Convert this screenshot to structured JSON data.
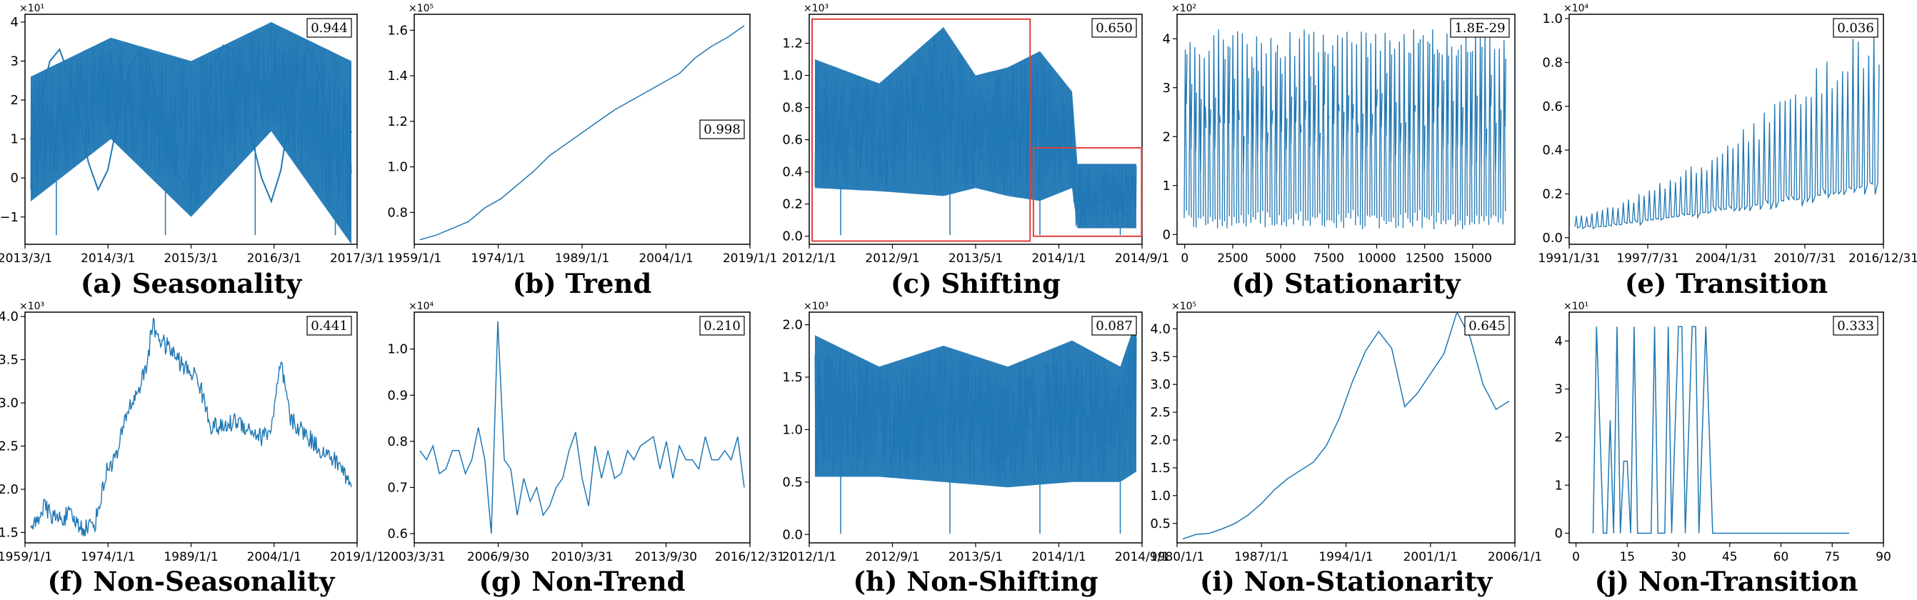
{
  "figure": {
    "accent": "#1f77b4",
    "highlight": "#e0403a"
  },
  "chart_data": [
    {
      "id": "a",
      "type": "line",
      "caption": "(a) Seasonality",
      "badge": "0.944",
      "multiplier": "×10¹",
      "mode": "dense",
      "xlabels": [
        "2013/3/1",
        "2014/3/1",
        "2015/3/1",
        "2016/3/1",
        "2017/3/1"
      ],
      "ylim": [
        -1.7,
        4.2
      ],
      "yticks": [
        -1,
        0,
        1,
        2,
        3,
        4
      ],
      "yticklabels": [
        "−1",
        "0",
        "1",
        "2",
        "3",
        "4"
      ],
      "env_x": [
        0,
        0.25,
        0.5,
        0.75,
        1
      ],
      "env_hi": [
        2.6,
        3.6,
        3.0,
        4.0,
        3.0
      ],
      "env_lo": [
        -0.6,
        1.0,
        -1.0,
        1.2,
        -1.7
      ],
      "series": [
        {
          "name": "",
          "x": [
            0.0,
            0.03,
            0.06,
            0.09,
            0.12,
            0.15,
            0.18,
            0.21,
            0.24,
            0.27,
            0.3,
            0.33,
            0.36,
            0.39,
            0.42,
            0.45,
            0.48,
            0.51,
            0.54,
            0.57,
            0.6,
            0.63,
            0.66,
            0.69,
            0.72,
            0.75,
            0.78,
            0.81,
            0.84,
            0.87,
            0.9,
            0.93,
            0.96,
            1.0
          ],
          "y": [
            1.0,
            2.0,
            3.0,
            3.3,
            2.6,
            1.6,
            0.4,
            -0.3,
            0.2,
            1.4,
            2.6,
            3.2,
            3.1,
            2.2,
            1.1,
            0.2,
            -0.2,
            0.5,
            1.8,
            2.9,
            3.4,
            3.3,
            2.4,
            1.0,
            0.0,
            -0.6,
            0.2,
            1.8,
            3.0,
            3.3,
            2.6,
            1.4,
            0.3,
            1.2
          ]
        }
      ]
    },
    {
      "id": "b",
      "type": "line",
      "caption": "(b) Trend",
      "badge": "0.998",
      "multiplier": "×10⁵",
      "mode": "thin",
      "badge_pos": "right-middle",
      "xlabels": [
        "1959/1/1",
        "1974/1/1",
        "1989/1/1",
        "2004/1/1",
        "2019/1/1"
      ],
      "ylim": [
        0.66,
        1.67
      ],
      "yticks": [
        0.8,
        1.0,
        1.2,
        1.4,
        1.6
      ],
      "yticklabels": [
        "0.8",
        "1.0",
        "1.2",
        "1.4",
        "1.6"
      ],
      "series": [
        {
          "name": "",
          "x": [
            0.0,
            0.05,
            0.1,
            0.15,
            0.2,
            0.25,
            0.3,
            0.35,
            0.4,
            0.45,
            0.5,
            0.55,
            0.6,
            0.65,
            0.7,
            0.75,
            0.8,
            0.85,
            0.9,
            0.95,
            1.0
          ],
          "y": [
            0.68,
            0.7,
            0.73,
            0.76,
            0.82,
            0.86,
            0.92,
            0.98,
            1.05,
            1.1,
            1.15,
            1.2,
            1.25,
            1.29,
            1.33,
            1.37,
            1.41,
            1.48,
            1.53,
            1.57,
            1.62
          ]
        }
      ]
    },
    {
      "id": "c",
      "type": "line",
      "caption": "(c) Shifting",
      "badge": "0.650",
      "multiplier": "×10³",
      "mode": "dense",
      "highlight": true,
      "xlabels": [
        "2012/1/1",
        "2012/9/1",
        "2013/5/1",
        "2014/1/1",
        "2014/9/1"
      ],
      "ylim": [
        -0.05,
        1.38
      ],
      "yticks": [
        0,
        0.2,
        0.4,
        0.6,
        0.8,
        1.0,
        1.2
      ],
      "yticklabels": [
        "0.0",
        "0.2",
        "0.4",
        "0.6",
        "0.8",
        "1.0",
        "1.2"
      ],
      "env_x": [
        0,
        0.2,
        0.4,
        0.5,
        0.6,
        0.7,
        0.8,
        0.81,
        1
      ],
      "env_hi": [
        1.1,
        0.95,
        1.3,
        1.0,
        1.05,
        1.15,
        0.9,
        0.45,
        0.45
      ],
      "env_lo": [
        0.3,
        0.28,
        0.25,
        0.3,
        0.25,
        0.22,
        0.3,
        0.05,
        0.05
      ],
      "series": [
        {
          "name": "",
          "x": [
            0.0,
            0.05,
            0.1,
            0.15,
            0.2,
            0.25,
            0.3,
            0.35,
            0.4,
            0.45,
            0.5,
            0.55,
            0.6,
            0.65,
            0.7,
            0.75,
            0.8,
            0.81,
            0.85,
            0.9,
            0.95,
            1.0
          ],
          "y": [
            0.62,
            0.6,
            0.58,
            0.55,
            0.52,
            0.58,
            0.72,
            0.76,
            0.8,
            0.7,
            0.6,
            0.55,
            0.6,
            0.66,
            0.66,
            0.6,
            0.55,
            0.18,
            0.2,
            0.22,
            0.24,
            0.26
          ]
        }
      ]
    },
    {
      "id": "d",
      "type": "line",
      "caption": "(d) Stationarity",
      "badge": "1.8E-29",
      "multiplier": "×10²",
      "mode": "spikes",
      "spike_count": 68,
      "xlim": [
        -400,
        17200
      ],
      "xticks": [
        0,
        2500,
        5000,
        7500,
        10000,
        12500,
        15000
      ],
      "xticklabels": [
        "0",
        "2500",
        "5000",
        "7500",
        "10000",
        "12500",
        "15000"
      ],
      "ylim": [
        -0.2,
        4.5
      ],
      "yticks": [
        0,
        1,
        2,
        3,
        4
      ],
      "yticklabels": [
        "0",
        "1",
        "2",
        "3",
        "4"
      ],
      "series": [
        {
          "name": "",
          "y_range": [
            0.1,
            4.2
          ]
        }
      ]
    },
    {
      "id": "e",
      "type": "line",
      "caption": "(e) Transition",
      "badge": "0.036",
      "multiplier": "×10⁴",
      "mode": "growing_spikes",
      "spike_count": 58,
      "xlabels": [
        "1991/1/31",
        "1997/7/31",
        "2004/1/31",
        "2010/7/31",
        "2016/12/31"
      ],
      "ylim": [
        -0.03,
        1.02
      ],
      "yticks": [
        0,
        0.2,
        0.4,
        0.6,
        0.8,
        1.0
      ],
      "yticklabels": [
        "0.0",
        "0.2",
        "0.4",
        "0.6",
        "0.8",
        "1.0"
      ],
      "series": [
        {
          "name": "",
          "x": [
            0.0,
            0.1,
            0.2,
            0.3,
            0.4,
            0.5,
            0.6,
            0.7,
            0.8,
            0.9,
            1.0
          ],
          "y_base": [
            0.05,
            0.05,
            0.07,
            0.09,
            0.11,
            0.13,
            0.15,
            0.17,
            0.19,
            0.22,
            0.25
          ],
          "y_peak": [
            0.1,
            0.14,
            0.2,
            0.27,
            0.35,
            0.45,
            0.55,
            0.68,
            0.8,
            0.9,
            0.97
          ]
        }
      ]
    },
    {
      "id": "f",
      "type": "line",
      "caption": "(f) Non-Seasonality",
      "badge": "0.441",
      "multiplier": "×10³",
      "mode": "jagged",
      "xlabels": [
        "1959/1/1",
        "1974/1/1",
        "1989/1/1",
        "2004/1/1",
        "2019/1/1"
      ],
      "ylim": [
        1.38,
        4.05
      ],
      "yticks": [
        1.5,
        2.0,
        2.5,
        3.0,
        3.5,
        4.0
      ],
      "yticklabels": [
        "1.5",
        "2.0",
        "2.5",
        "3.0",
        "3.5",
        "4.0"
      ],
      "series": [
        {
          "name": "",
          "x": [
            0.0,
            0.04,
            0.08,
            0.12,
            0.16,
            0.2,
            0.24,
            0.27,
            0.3,
            0.33,
            0.36,
            0.38,
            0.41,
            0.44,
            0.48,
            0.52,
            0.56,
            0.6,
            0.64,
            0.68,
            0.72,
            0.75,
            0.78,
            0.81,
            0.84,
            0.88,
            0.92,
            0.96,
            1.0
          ],
          "y": [
            1.5,
            1.8,
            1.65,
            1.7,
            1.55,
            1.6,
            2.25,
            2.4,
            2.9,
            3.1,
            3.4,
            3.9,
            3.7,
            3.6,
            3.4,
            3.3,
            2.75,
            2.7,
            2.8,
            2.7,
            2.6,
            2.7,
            3.45,
            2.8,
            2.7,
            2.55,
            2.4,
            2.3,
            2.05
          ]
        }
      ]
    },
    {
      "id": "g",
      "type": "line",
      "caption": "(g) Non-Trend",
      "badge": "0.210",
      "multiplier": "×10⁴",
      "mode": "thin",
      "xlabels": [
        "2003/3/31",
        "2006/9/30",
        "2010/3/31",
        "2013/9/30",
        "2016/12/31"
      ],
      "ylim": [
        0.58,
        1.08
      ],
      "yticks": [
        0.6,
        0.7,
        0.8,
        0.9,
        1.0
      ],
      "yticklabels": [
        "0.6",
        "0.7",
        "0.8",
        "0.9",
        "1.0"
      ],
      "series": [
        {
          "name": "",
          "x": [
            0.0,
            0.02,
            0.04,
            0.06,
            0.08,
            0.1,
            0.12,
            0.14,
            0.16,
            0.18,
            0.2,
            0.22,
            0.24,
            0.26,
            0.28,
            0.3,
            0.32,
            0.34,
            0.36,
            0.38,
            0.4,
            0.42,
            0.44,
            0.46,
            0.48,
            0.5,
            0.52,
            0.54,
            0.56,
            0.58,
            0.6,
            0.62,
            0.64,
            0.66,
            0.68,
            0.7,
            0.72,
            0.74,
            0.76,
            0.78,
            0.8,
            0.82,
            0.84,
            0.86,
            0.88,
            0.9,
            0.92,
            0.94,
            0.96,
            0.98,
            1.0
          ],
          "y": [
            0.78,
            0.76,
            0.79,
            0.73,
            0.74,
            0.78,
            0.78,
            0.73,
            0.76,
            0.83,
            0.76,
            0.6,
            1.06,
            0.76,
            0.74,
            0.64,
            0.72,
            0.67,
            0.7,
            0.64,
            0.66,
            0.7,
            0.72,
            0.78,
            0.82,
            0.72,
            0.66,
            0.79,
            0.72,
            0.78,
            0.72,
            0.73,
            0.78,
            0.76,
            0.79,
            0.8,
            0.81,
            0.74,
            0.8,
            0.72,
            0.79,
            0.76,
            0.76,
            0.74,
            0.81,
            0.76,
            0.76,
            0.78,
            0.76,
            0.81,
            0.7
          ]
        }
      ]
    },
    {
      "id": "h",
      "type": "line",
      "caption": "(h) Non-Shifting",
      "badge": "0.087",
      "multiplier": "×10³",
      "mode": "dense",
      "xlabels": [
        "2012/1/1",
        "2012/9/1",
        "2013/5/1",
        "2014/1/1",
        "2014/9/1"
      ],
      "ylim": [
        -0.08,
        2.12
      ],
      "yticks": [
        0,
        0.5,
        1.0,
        1.5,
        2.0
      ],
      "yticklabels": [
        "0.0",
        "0.5",
        "1.0",
        "1.5",
        "2.0"
      ],
      "env_x": [
        0,
        0.2,
        0.4,
        0.6,
        0.8,
        0.95,
        1
      ],
      "env_hi": [
        1.9,
        1.6,
        1.8,
        1.6,
        1.85,
        1.6,
        2.05
      ],
      "env_lo": [
        0.55,
        0.55,
        0.5,
        0.45,
        0.5,
        0.5,
        0.6
      ],
      "series": [
        {
          "name": "",
          "x": [
            0.0,
            0.1,
            0.2,
            0.3,
            0.4,
            0.5,
            0.6,
            0.7,
            0.8,
            0.9,
            1.0
          ],
          "y": [
            1.2,
            1.1,
            1.0,
            1.05,
            1.2,
            1.1,
            1.0,
            1.05,
            1.2,
            1.05,
            1.3
          ]
        }
      ]
    },
    {
      "id": "i",
      "type": "line",
      "caption": "(i) Non-Stationarity",
      "badge": "0.645",
      "multiplier": "×10⁵",
      "mode": "thin",
      "xlabels": [
        "1980/1/1",
        "1987/1/1",
        "1994/1/1",
        "2001/1/1",
        "2006/1/1"
      ],
      "ylim": [
        0.15,
        4.3
      ],
      "yticks": [
        0.5,
        1.0,
        1.5,
        2.0,
        2.5,
        3.0,
        3.5,
        4.0
      ],
      "yticklabels": [
        "0.5",
        "1.0",
        "1.5",
        "2.0",
        "2.5",
        "3.0",
        "3.5",
        "4.0"
      ],
      "series": [
        {
          "name": "",
          "x": [
            0.0,
            0.04,
            0.08,
            0.12,
            0.16,
            0.2,
            0.24,
            0.28,
            0.32,
            0.36,
            0.4,
            0.44,
            0.48,
            0.52,
            0.56,
            0.6,
            0.64,
            0.68,
            0.72,
            0.76,
            0.8,
            0.84,
            0.88,
            0.92,
            0.96,
            1.0
          ],
          "y": [
            0.22,
            0.3,
            0.32,
            0.4,
            0.5,
            0.65,
            0.85,
            1.1,
            1.3,
            1.45,
            1.6,
            1.9,
            2.4,
            3.05,
            3.6,
            3.95,
            3.65,
            2.6,
            2.85,
            3.2,
            3.55,
            4.3,
            3.85,
            3.0,
            2.55,
            2.7
          ]
        }
      ]
    },
    {
      "id": "j",
      "type": "line",
      "caption": "(j) Non-Transition",
      "badge": "0.333",
      "multiplier": "×10¹",
      "mode": "step",
      "xlim": [
        -2,
        90
      ],
      "xticks": [
        0,
        15,
        30,
        45,
        60,
        75,
        90
      ],
      "xticklabels": [
        "0",
        "15",
        "30",
        "45",
        "60",
        "75",
        "90"
      ],
      "ylim": [
        -0.2,
        4.6
      ],
      "yticks": [
        0,
        1,
        2,
        3,
        4
      ],
      "yticklabels": [
        "0",
        "1",
        "2",
        "3",
        "4"
      ],
      "series": [
        {
          "name": "",
          "x": [
            5,
            6,
            8,
            9,
            10,
            11,
            12,
            13,
            14,
            15,
            16,
            17,
            18,
            20,
            22,
            23,
            24,
            26,
            27,
            28,
            30,
            31,
            32,
            34,
            35,
            36,
            38,
            40,
            80
          ],
          "y": [
            0,
            4.3,
            0,
            0,
            2.35,
            0,
            4.3,
            0,
            1.5,
            1.5,
            0,
            4.3,
            0,
            0,
            0,
            4.3,
            0,
            0,
            4.3,
            0,
            4.3,
            4.3,
            0,
            4.3,
            4.3,
            0,
            4.3,
            0,
            0
          ]
        }
      ]
    }
  ]
}
